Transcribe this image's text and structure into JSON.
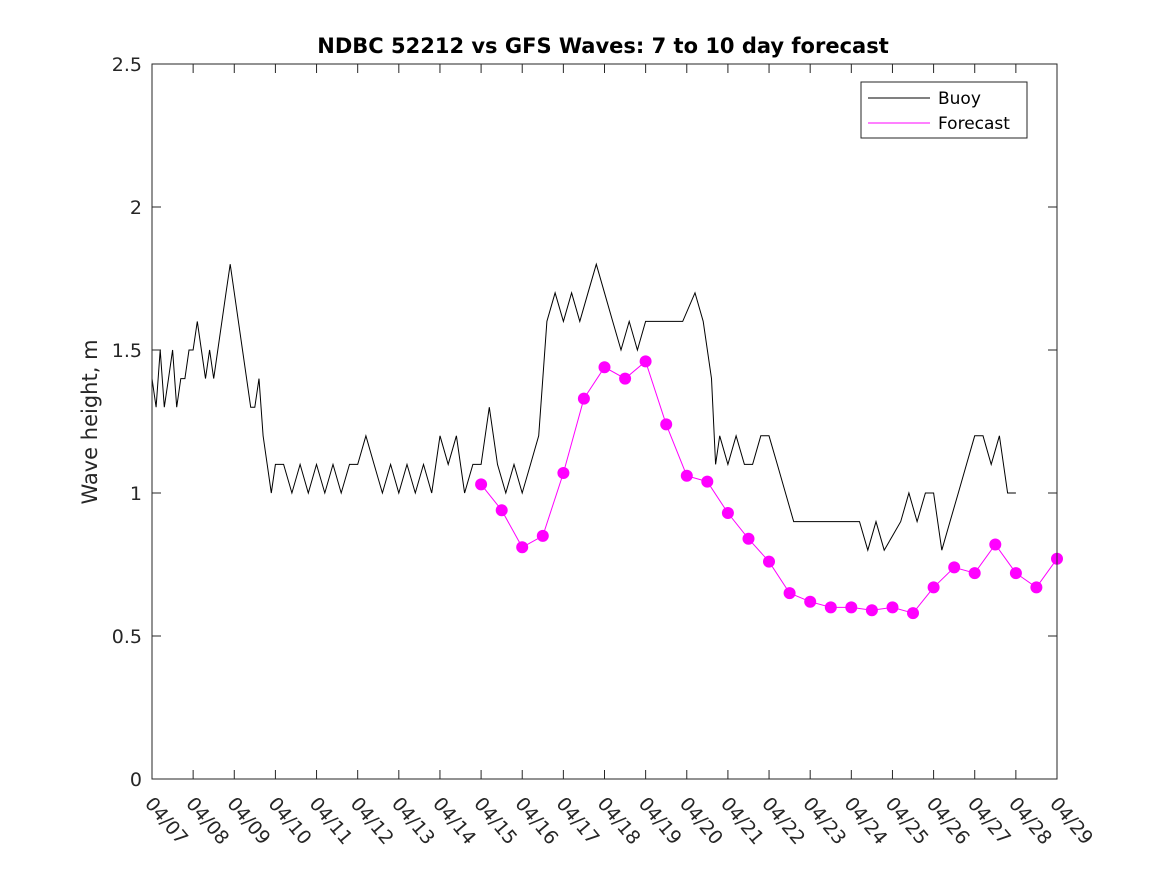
{
  "chart_data": {
    "type": "line",
    "title": "NDBC 52212 vs GFS Waves: 7 to 10 day forecast",
    "xlabel": "",
    "ylabel": "Wave height, m",
    "xlim": [
      0,
      22
    ],
    "ylim": [
      0,
      2.5
    ],
    "x_ticks": [
      "04/07",
      "04/08",
      "04/09",
      "04/10",
      "04/11",
      "04/12",
      "04/13",
      "04/14",
      "04/15",
      "04/16",
      "04/17",
      "04/18",
      "04/19",
      "04/20",
      "04/21",
      "04/22",
      "04/23",
      "04/24",
      "04/25",
      "04/26",
      "04/27",
      "04/28",
      "04/29"
    ],
    "y_ticks": [
      {
        "value": 0,
        "label": "0"
      },
      {
        "value": 0.5,
        "label": "0.5"
      },
      {
        "value": 1,
        "label": "1"
      },
      {
        "value": 1.5,
        "label": "1.5"
      },
      {
        "value": 2,
        "label": "2"
      },
      {
        "value": 2.5,
        "label": "2.5"
      }
    ],
    "x_unit_note": "x values are days after 04/07 00:00",
    "grid": false,
    "legend": {
      "position": "top-right",
      "entries": [
        {
          "name": "Buoy",
          "color": "#000000"
        },
        {
          "name": "Forecast",
          "color": "#ff00ff"
        }
      ]
    },
    "series": [
      {
        "name": "Buoy",
        "color": "#000000",
        "points": [
          [
            0,
            1.4
          ],
          [
            0.1,
            1.3
          ],
          [
            0.2,
            1.5
          ],
          [
            0.3,
            1.3
          ],
          [
            0.4,
            1.4
          ],
          [
            0.5,
            1.5
          ],
          [
            0.6,
            1.3
          ],
          [
            0.7,
            1.4
          ],
          [
            0.8,
            1.4
          ],
          [
            0.9,
            1.5
          ],
          [
            1.0,
            1.5
          ],
          [
            1.1,
            1.6
          ],
          [
            1.2,
            1.5
          ],
          [
            1.3,
            1.4
          ],
          [
            1.4,
            1.5
          ],
          [
            1.5,
            1.4
          ],
          [
            1.6,
            1.5
          ],
          [
            1.7,
            1.6
          ],
          [
            1.8,
            1.7
          ],
          [
            1.9,
            1.8
          ],
          [
            2.0,
            1.7
          ],
          [
            2.1,
            1.6
          ],
          [
            2.2,
            1.5
          ],
          [
            2.3,
            1.4
          ],
          [
            2.4,
            1.3
          ],
          [
            2.5,
            1.3
          ],
          [
            2.6,
            1.4
          ],
          [
            2.7,
            1.2
          ],
          [
            2.8,
            1.1
          ],
          [
            2.9,
            1.0
          ],
          [
            3.0,
            1.1
          ],
          [
            3.2,
            1.1
          ],
          [
            3.4,
            1.0
          ],
          [
            3.6,
            1.1
          ],
          [
            3.8,
            1.0
          ],
          [
            4.0,
            1.1
          ],
          [
            4.2,
            1.0
          ],
          [
            4.4,
            1.1
          ],
          [
            4.6,
            1.0
          ],
          [
            4.8,
            1.1
          ],
          [
            5.0,
            1.1
          ],
          [
            5.2,
            1.2
          ],
          [
            5.4,
            1.1
          ],
          [
            5.6,
            1.0
          ],
          [
            5.8,
            1.1
          ],
          [
            6.0,
            1.0
          ],
          [
            6.2,
            1.1
          ],
          [
            6.4,
            1.0
          ],
          [
            6.6,
            1.1
          ],
          [
            6.8,
            1.0
          ],
          [
            7.0,
            1.2
          ],
          [
            7.2,
            1.1
          ],
          [
            7.4,
            1.2
          ],
          [
            7.6,
            1.0
          ],
          [
            7.8,
            1.1
          ],
          [
            8.0,
            1.1
          ],
          [
            8.2,
            1.3
          ],
          [
            8.3,
            1.2
          ],
          [
            8.4,
            1.1
          ],
          [
            8.6,
            1.0
          ],
          [
            8.8,
            1.1
          ],
          [
            9.0,
            1.0
          ],
          [
            9.2,
            1.1
          ],
          [
            9.4,
            1.2
          ],
          [
            9.6,
            1.6
          ],
          [
            9.8,
            1.7
          ],
          [
            10.0,
            1.6
          ],
          [
            10.2,
            1.7
          ],
          [
            10.4,
            1.6
          ],
          [
            10.6,
            1.7
          ],
          [
            10.8,
            1.8
          ],
          [
            11.0,
            1.7
          ],
          [
            11.2,
            1.6
          ],
          [
            11.4,
            1.5
          ],
          [
            11.6,
            1.6
          ],
          [
            11.8,
            1.5
          ],
          [
            12.0,
            1.6
          ],
          [
            12.3,
            1.6
          ],
          [
            12.6,
            1.6
          ],
          [
            12.9,
            1.6
          ],
          [
            13.2,
            1.7
          ],
          [
            13.4,
            1.6
          ],
          [
            13.6,
            1.4
          ],
          [
            13.7,
            1.1
          ],
          [
            13.8,
            1.2
          ],
          [
            14.0,
            1.1
          ],
          [
            14.2,
            1.2
          ],
          [
            14.4,
            1.1
          ],
          [
            14.6,
            1.1
          ],
          [
            14.8,
            1.2
          ],
          [
            15.0,
            1.2
          ],
          [
            15.2,
            1.1
          ],
          [
            15.4,
            1.0
          ],
          [
            15.6,
            0.9
          ],
          [
            15.8,
            0.9
          ],
          [
            16.0,
            0.9
          ],
          [
            16.2,
            0.9
          ],
          [
            16.6,
            0.9
          ],
          [
            17.0,
            0.9
          ],
          [
            17.2,
            0.9
          ],
          [
            17.4,
            0.8
          ],
          [
            17.6,
            0.9
          ],
          [
            17.8,
            0.8
          ],
          [
            18.0,
            0.85
          ],
          [
            18.2,
            0.9
          ],
          [
            18.4,
            1.0
          ],
          [
            18.6,
            0.9
          ],
          [
            18.8,
            1.0
          ],
          [
            19.0,
            1.0
          ],
          [
            19.2,
            0.8
          ],
          [
            19.4,
            0.9
          ],
          [
            19.6,
            1.0
          ],
          [
            19.8,
            1.1
          ],
          [
            20.0,
            1.2
          ],
          [
            20.2,
            1.2
          ],
          [
            20.4,
            1.1
          ],
          [
            20.6,
            1.2
          ],
          [
            20.8,
            1.0
          ],
          [
            21.0,
            1.0
          ]
        ]
      },
      {
        "name": "Forecast",
        "color": "#ff00ff",
        "points": [
          [
            8.0,
            1.03
          ],
          [
            8.5,
            0.94
          ],
          [
            9.0,
            0.81
          ],
          [
            9.5,
            0.85
          ],
          [
            10.0,
            1.07
          ],
          [
            10.5,
            1.33
          ],
          [
            11.0,
            1.44
          ],
          [
            11.5,
            1.4
          ],
          [
            12.0,
            1.46
          ],
          [
            12.5,
            1.24
          ],
          [
            13.0,
            1.06
          ],
          [
            13.5,
            1.04
          ],
          [
            14.0,
            0.93
          ],
          [
            14.5,
            0.84
          ],
          [
            15.0,
            0.76
          ],
          [
            15.5,
            0.65
          ],
          [
            16.0,
            0.62
          ],
          [
            16.5,
            0.6
          ],
          [
            17.0,
            0.6
          ],
          [
            17.5,
            0.59
          ],
          [
            18.0,
            0.6
          ],
          [
            18.5,
            0.58
          ],
          [
            19.0,
            0.67
          ],
          [
            19.5,
            0.74
          ],
          [
            20.0,
            0.72
          ],
          [
            20.5,
            0.82
          ],
          [
            21.0,
            0.72
          ],
          [
            21.5,
            0.67
          ],
          [
            22.0,
            0.77
          ]
        ]
      }
    ]
  }
}
